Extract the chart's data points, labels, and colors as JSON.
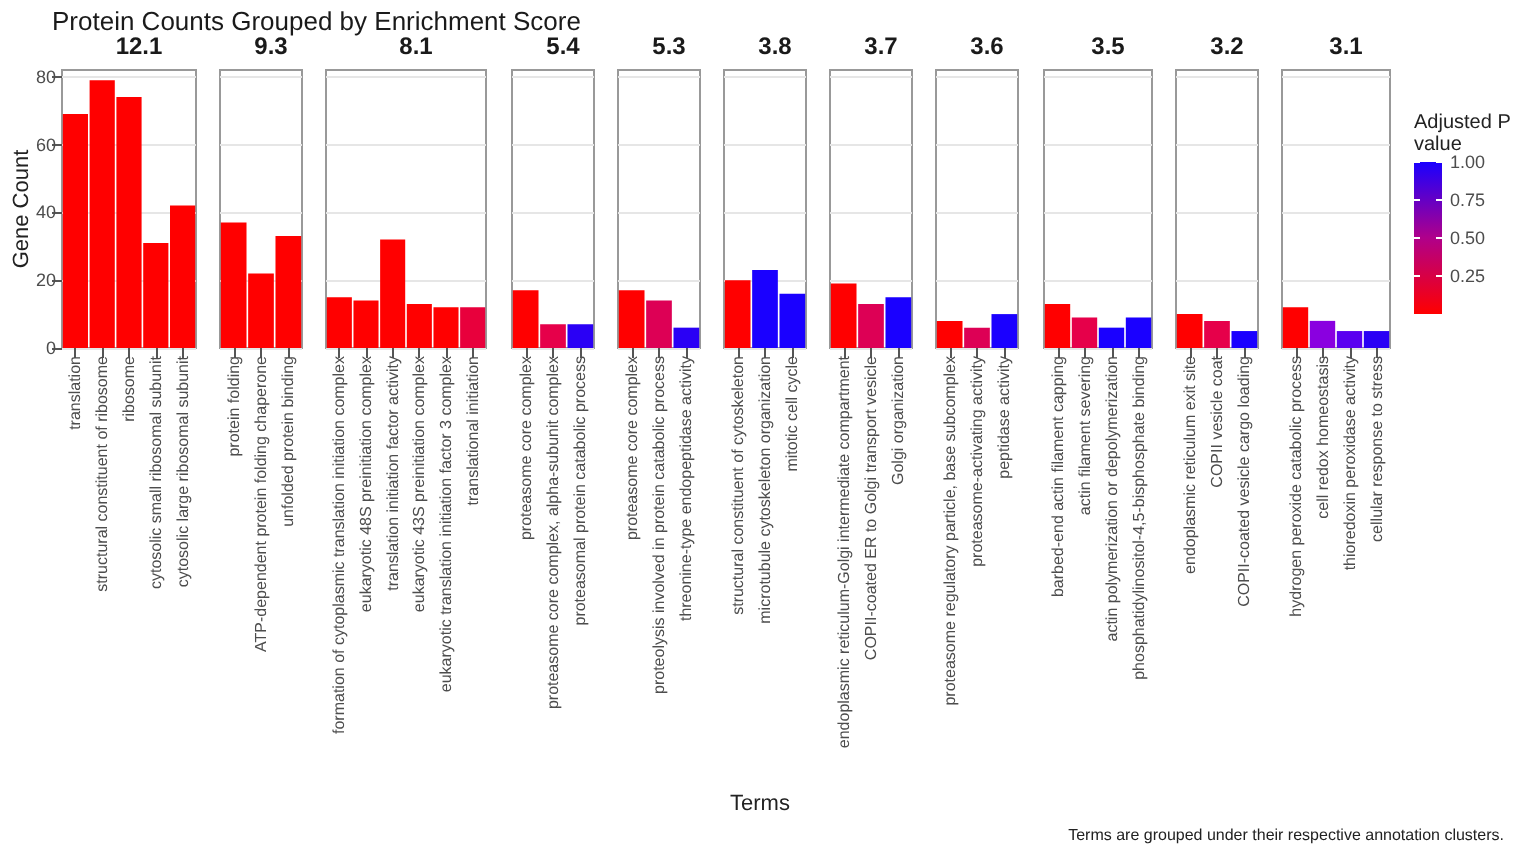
{
  "chart_data": [
    {
      "type": "bar",
      "title": "12.1",
      "ylabel": "Gene Count",
      "categories": [
        "translation",
        "structural constituent of ribosome",
        "ribosome",
        "cytosolic small ribosomal subunit",
        "cytosolic large ribosomal subunit"
      ],
      "values": [
        69,
        79,
        74,
        31,
        42
      ],
      "colors": [
        "#ff0000",
        "#ff0000",
        "#ff0000",
        "#ff0000",
        "#ff0000"
      ],
      "ylim": [
        0,
        82
      ],
      "yticks": [
        0,
        20,
        40,
        60,
        80
      ],
      "grid": "y"
    },
    {
      "type": "bar",
      "title": "9.3",
      "categories": [
        "protein folding",
        "ATP-dependent protein folding chaperone",
        "unfolded protein binding"
      ],
      "values": [
        37,
        22,
        33
      ],
      "colors": [
        "#ff0000",
        "#ff0000",
        "#ff0000"
      ],
      "ylim": [
        0,
        82
      ],
      "yticks": [
        0,
        20,
        40,
        60,
        80
      ],
      "grid": "y",
      "tick_labels": "x"
    },
    {
      "type": "bar",
      "title": "8.1",
      "categories": [
        "formation of cytoplasmic translation initiation complex",
        "eukaryotic 48S preinitiation complex",
        "translation initiation factor activity",
        "eukaryotic 43S preinitiation complex",
        "eukaryotic translation initiation factor 3 complex",
        "translational initiation"
      ],
      "values": [
        15,
        14,
        32,
        13,
        12,
        12
      ],
      "colors": [
        "#ff0000",
        "#ff0000",
        "#ff0000",
        "#ff0000",
        "#ff0000",
        "#e8003c"
      ],
      "ylim": [
        0,
        82
      ],
      "yticks": [
        0,
        20,
        40,
        60,
        80
      ],
      "grid": "y",
      "tick_labels": "x"
    },
    {
      "type": "bar",
      "title": "5.4",
      "categories": [
        "proteasome core complex",
        "proteasome core complex, alpha-subunit complex",
        "proteasomal protein catabolic process"
      ],
      "values": [
        17,
        7,
        7
      ],
      "colors": [
        "#ff0000",
        "#e6004a",
        "#2a00f5"
      ],
      "ylim": [
        0,
        82
      ],
      "yticks": [
        0,
        20,
        40,
        60,
        80
      ],
      "grid": "y",
      "tick_labels": "x"
    },
    {
      "type": "bar",
      "title": "5.3",
      "categories": [
        "proteasome core complex",
        "proteolysis involved in protein catabolic process",
        "threonine-type endopeptidase activity"
      ],
      "values": [
        17,
        14,
        6
      ],
      "colors": [
        "#ff0000",
        "#dd0055",
        "#2a00f5"
      ],
      "ylim": [
        0,
        82
      ],
      "yticks": [
        0,
        20,
        40,
        60,
        80
      ],
      "grid": "y",
      "tick_labels": "x"
    },
    {
      "type": "bar",
      "title": "3.8",
      "categories": [
        "structural constituent of cytoskeleton",
        "microtubule cytoskeleton organization",
        "mitotic cell cycle"
      ],
      "values": [
        20,
        23,
        16
      ],
      "colors": [
        "#ff0000",
        "#1a00ff",
        "#1a00ff"
      ],
      "ylim": [
        0,
        82
      ],
      "yticks": [
        0,
        20,
        40,
        60,
        80
      ],
      "grid": "y",
      "tick_labels": "x"
    },
    {
      "type": "bar",
      "title": "3.7",
      "categories": [
        "endoplasmic reticulum-Golgi intermediate compartment",
        "COPII-coated ER to Golgi transport vesicle",
        "Golgi organization"
      ],
      "values": [
        19,
        13,
        15
      ],
      "colors": [
        "#ff0000",
        "#dd0055",
        "#1a00ff"
      ],
      "ylim": [
        0,
        82
      ],
      "yticks": [
        0,
        20,
        40,
        60,
        80
      ],
      "grid": "y",
      "tick_labels": "x"
    },
    {
      "type": "bar",
      "title": "3.6",
      "categories": [
        "proteasome regulatory particle, base subcomplex",
        "proteasome-activating activity",
        "peptidase activity"
      ],
      "values": [
        8,
        6,
        10
      ],
      "colors": [
        "#ff0000",
        "#dd0055",
        "#1a00ff"
      ],
      "ylim": [
        0,
        82
      ],
      "yticks": [
        0,
        20,
        40,
        60,
        80
      ],
      "grid": "y",
      "tick_labels": "x"
    },
    {
      "type": "bar",
      "title": "3.5",
      "categories": [
        "barbed-end actin filament capping",
        "actin filament severing",
        "actin polymerization or depolymerization",
        "phosphatidylinositol-4,5-bisphosphate binding"
      ],
      "values": [
        13,
        9,
        6,
        9
      ],
      "colors": [
        "#ff0000",
        "#e6004a",
        "#1a00ff",
        "#1a00ff"
      ],
      "ylim": [
        0,
        82
      ],
      "yticks": [
        0,
        20,
        40,
        60,
        80
      ],
      "grid": "y",
      "tick_labels": "x"
    },
    {
      "type": "bar",
      "title": "3.2",
      "categories": [
        "endoplasmic reticulum exit site",
        "COPII vesicle coat",
        "COPII-coated vesicle cargo loading"
      ],
      "values": [
        10,
        8,
        5
      ],
      "colors": [
        "#ff0000",
        "#e6004a",
        "#1a00ff"
      ],
      "ylim": [
        0,
        82
      ],
      "yticks": [
        0,
        20,
        40,
        60,
        80
      ],
      "grid": "y",
      "tick_labels": "x"
    },
    {
      "type": "bar",
      "title": "3.1",
      "categories": [
        "hydrogen peroxide catabolic process",
        "cell redox homeostasis",
        "thioredoxin peroxidase activity",
        "cellular response to stress"
      ],
      "values": [
        12,
        8,
        5,
        5
      ],
      "colors": [
        "#ff0000",
        "#8a00e0",
        "#5a00f0",
        "#2a00f5"
      ],
      "ylim": [
        0,
        82
      ],
      "yticks": [
        0,
        20,
        40,
        60,
        80
      ],
      "grid": "y",
      "tick_labels": "x",
      "clabel": "Adjusted P value",
      "clim": [
        0,
        1
      ],
      "cticks": [
        {
          "value": 0.25,
          "label": "0.25"
        },
        {
          "value": 0.5,
          "label": "0.50"
        },
        {
          "value": 0.75,
          "label": "0.75"
        },
        {
          "value": 1,
          "label": "1.00"
        }
      ]
    },
    {
      "type": "other",
      "title": "Protein Counts Grouped by Enrichment Score",
      "xlabel": "Terms",
      "annotations": [
        "Terms are grouped under their respective annotation clusters."
      ]
    }
  ]
}
